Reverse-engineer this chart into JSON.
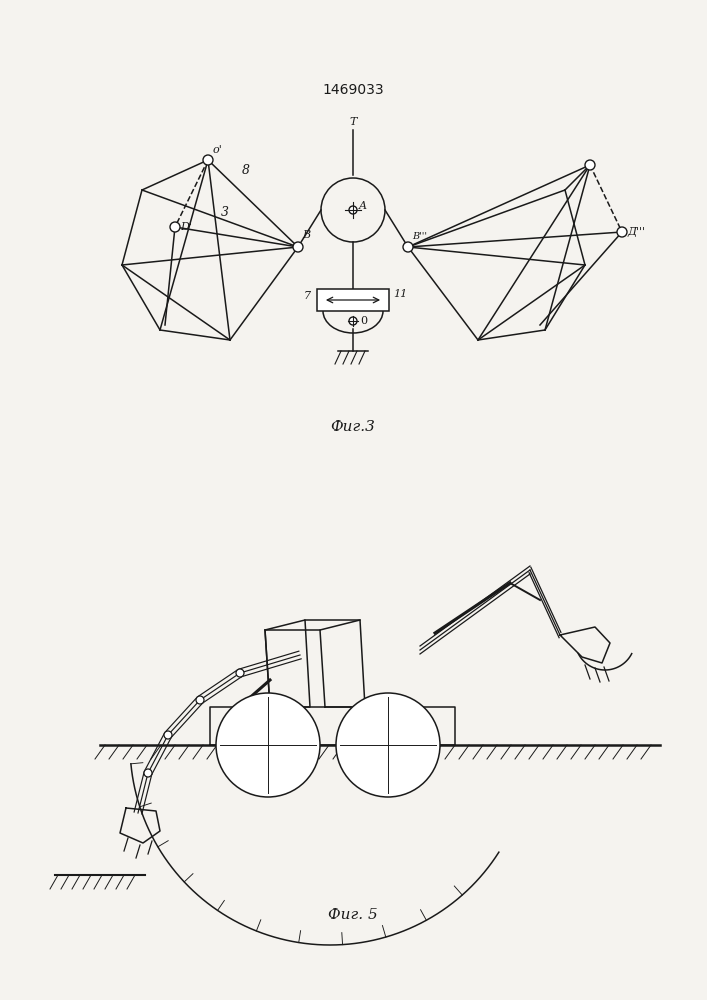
{
  "title": "1469033",
  "fig3_label": "Фиг.3",
  "fig5_label": "Фиг. 5",
  "bg_color": "#f5f3ef",
  "line_color": "#1a1a1a",
  "lw": 1.1
}
